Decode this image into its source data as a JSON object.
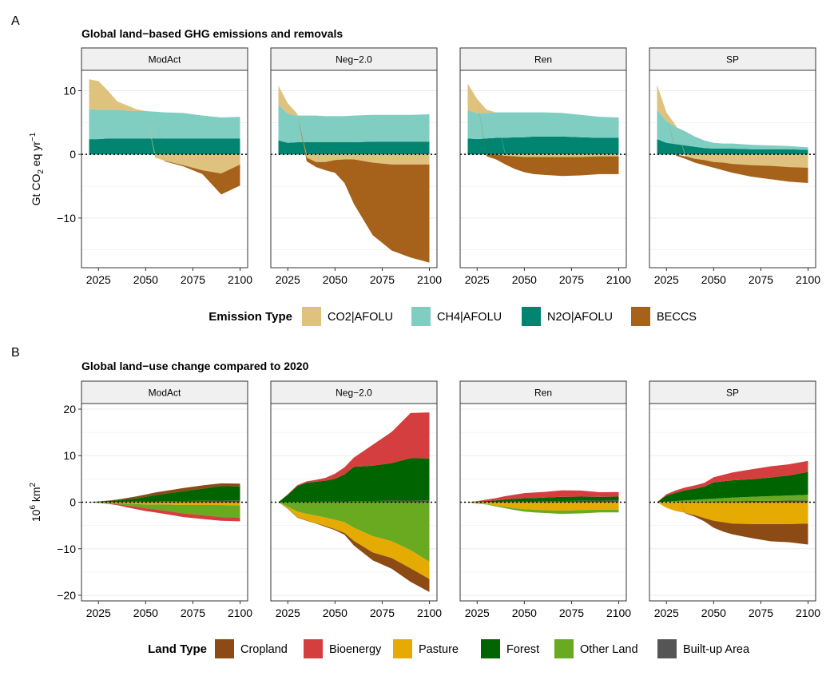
{
  "colors": {
    "CO2|AFOLU": "#dfc27d",
    "CH4|AFOLU": "#80cdc1",
    "N2O|AFOLU": "#018571",
    "BECCS": "#a6611a",
    "Cropland": "#8c4a14",
    "Bioenergy": "#d53e3e",
    "Pasture": "#e6ab02",
    "Forest": "#006400",
    "Other Land": "#6aaa20",
    "Built-up Area": "#555555",
    "strip": "#f0f0f0",
    "grid": "#ebebeb"
  },
  "chart_data": [
    {
      "type": "area",
      "panel_tag": "A",
      "title": "Global land−based GHG emissions and removals",
      "ylabel": "Gt CO2 eq yr−1",
      "ylim": [
        -17.8,
        13.2
      ],
      "yticks": [
        10,
        0,
        -10
      ],
      "xlim": [
        2016,
        2104
      ],
      "xticks": [
        2025,
        2050,
        2075,
        2100
      ],
      "facets": [
        "ModAct",
        "Neg−2.0",
        "Ren",
        "SP"
      ],
      "legend": {
        "title": "Emission Type",
        "placement": "bottom",
        "items": [
          "CO2|AFOLU",
          "CH4|AFOLU",
          "N2O|AFOLU",
          "BECCS"
        ]
      },
      "x": [
        2020,
        2025,
        2030,
        2035,
        2040,
        2045,
        2050,
        2055,
        2060,
        2070,
        2080,
        2090,
        2100
      ],
      "panels": [
        {
          "facet": "ModAct",
          "series": [
            {
              "name": "N2O|AFOLU",
              "values": [
                2.4,
                2.4,
                2.5,
                2.5,
                2.5,
                2.5,
                2.5,
                2.5,
                2.5,
                2.5,
                2.5,
                2.5,
                2.5
              ]
            },
            {
              "name": "CH4|AFOLU",
              "values": [
                4.7,
                4.6,
                4.5,
                4.5,
                4.4,
                4.3,
                4.3,
                4.2,
                4.1,
                4.0,
                3.6,
                3.3,
                3.4
              ]
            },
            {
              "name": "CO2|AFOLU",
              "values": [
                4.7,
                4.5,
                3.0,
                1.3,
                0.8,
                0.3,
                0.0,
                -0.5,
                -1.0,
                -1.7,
                -2.5,
                -3.0,
                -1.6
              ]
            },
            {
              "name": "BECCS",
              "values": [
                0,
                0,
                0,
                0,
                0,
                0,
                0,
                0,
                -0.1,
                -0.2,
                -0.6,
                -3.3,
                -3.3
              ]
            }
          ]
        },
        {
          "facet": "Neg−2.0",
          "series": [
            {
              "name": "N2O|AFOLU",
              "values": [
                2.2,
                1.8,
                1.9,
                1.9,
                1.9,
                1.9,
                1.9,
                1.9,
                1.9,
                2.0,
                2.0,
                2.0,
                2.0
              ]
            },
            {
              "name": "CH4|AFOLU",
              "values": [
                5.6,
                4.6,
                4.2,
                4.2,
                4.2,
                4.1,
                4.1,
                4.1,
                4.2,
                4.2,
                4.2,
                4.2,
                4.3
              ]
            },
            {
              "name": "CO2|AFOLU",
              "values": [
                3.0,
                1.6,
                0.3,
                -0.5,
                -1.2,
                -1.2,
                -0.9,
                -0.8,
                -0.8,
                -1.3,
                -1.6,
                -1.6,
                -1.6
              ]
            },
            {
              "name": "BECCS",
              "values": [
                0,
                0,
                0,
                -0.6,
                -0.8,
                -1.3,
                -2.0,
                -3.7,
                -7.0,
                -11.4,
                -13.5,
                -14.6,
                -15.4
              ]
            }
          ]
        },
        {
          "facet": "Ren",
          "series": [
            {
              "name": "N2O|AFOLU",
              "values": [
                2.5,
                2.4,
                2.5,
                2.6,
                2.6,
                2.7,
                2.7,
                2.8,
                2.8,
                2.8,
                2.7,
                2.6,
                2.6
              ]
            },
            {
              "name": "CH4|AFOLU",
              "values": [
                4.4,
                4.1,
                4.0,
                4.0,
                4.0,
                3.9,
                3.9,
                3.8,
                3.8,
                3.7,
                3.5,
                3.3,
                3.2
              ]
            },
            {
              "name": "CO2|AFOLU",
              "values": [
                4.2,
                2.2,
                0.5,
                0.0,
                -0.2,
                -0.3,
                -0.4,
                -0.4,
                -0.4,
                -0.4,
                -0.4,
                -0.3,
                -0.3
              ]
            },
            {
              "name": "BECCS",
              "values": [
                0,
                0,
                -0.3,
                -0.8,
                -1.4,
                -2.0,
                -2.4,
                -2.7,
                -2.8,
                -3.0,
                -2.9,
                -2.8,
                -2.8
              ]
            }
          ]
        },
        {
          "facet": "SP",
          "series": [
            {
              "name": "N2O|AFOLU",
              "values": [
                2.4,
                1.8,
                1.6,
                1.4,
                1.2,
                1.0,
                0.9,
                0.9,
                0.9,
                0.8,
                0.8,
                0.8,
                0.7
              ]
            },
            {
              "name": "CH4|AFOLU",
              "values": [
                4.6,
                3.4,
                2.7,
                2.2,
                1.6,
                1.2,
                0.9,
                0.8,
                0.8,
                0.7,
                0.6,
                0.5,
                0.4
              ]
            },
            {
              "name": "CO2|AFOLU",
              "values": [
                3.9,
                1.4,
                0.2,
                -0.3,
                -0.7,
                -0.9,
                -1.2,
                -1.3,
                -1.5,
                -1.7,
                -1.8,
                -2.0,
                -2.1
              ]
            },
            {
              "name": "BECCS",
              "values": [
                0,
                0,
                -0.2,
                -0.4,
                -0.6,
                -0.8,
                -0.9,
                -1.2,
                -1.4,
                -1.8,
                -2.1,
                -2.3,
                -2.4
              ]
            }
          ]
        }
      ]
    },
    {
      "type": "area",
      "panel_tag": "B",
      "title": "Global land−use change compared to 2020",
      "ylabel": "10^6 km^2",
      "ylim": [
        -21.2,
        21.2
      ],
      "yticks": [
        20,
        10,
        0,
        -10,
        -20
      ],
      "xlim": [
        2016,
        2104
      ],
      "xticks": [
        2025,
        2050,
        2075,
        2100
      ],
      "facets": [
        "ModAct",
        "Neg−2.0",
        "Ren",
        "SP"
      ],
      "legend": {
        "title": "Land Type",
        "placement": "bottom",
        "items": [
          "Cropland",
          "Bioenergy",
          "Pasture",
          "Forest",
          "Other Land",
          "Built-up Area"
        ]
      },
      "x": [
        2020,
        2025,
        2030,
        2035,
        2040,
        2045,
        2050,
        2055,
        2060,
        2070,
        2080,
        2090,
        2100
      ],
      "panels": [
        {
          "facet": "ModAct",
          "series": [
            {
              "name": "Built-up Area",
              "values": [
                0,
                0.02,
                0.05,
                0.08,
                0.1,
                0.13,
                0.15,
                0.18,
                0.2,
                0.25,
                0.3,
                0.35,
                0.4
              ]
            },
            {
              "name": "Forest",
              "values": [
                0,
                0.1,
                0.2,
                0.3,
                0.5,
                0.7,
                1.0,
                1.3,
                1.6,
                2.1,
                2.6,
                3.1,
                3.0
              ]
            },
            {
              "name": "Cropland",
              "values": [
                0,
                0.05,
                0.1,
                0.2,
                0.3,
                0.4,
                0.5,
                0.6,
                0.6,
                0.7,
                0.7,
                0.6,
                0.6
              ]
            },
            {
              "name": "Pasture",
              "values": [
                0,
                -0.05,
                -0.1,
                -0.2,
                -0.3,
                -0.4,
                -0.5,
                -0.5,
                -0.5,
                -0.6,
                -0.6,
                -0.6,
                -0.7
              ]
            },
            {
              "name": "Other Land",
              "values": [
                0,
                -0.05,
                -0.15,
                -0.25,
                -0.4,
                -0.6,
                -0.8,
                -1.0,
                -1.3,
                -1.8,
                -2.2,
                -2.6,
                -2.6
              ]
            },
            {
              "name": "Bioenergy",
              "values": [
                0,
                -0.05,
                -0.1,
                -0.2,
                -0.4,
                -0.5,
                -0.6,
                -0.7,
                -0.7,
                -0.8,
                -0.8,
                -0.8,
                -0.8
              ]
            }
          ]
        },
        {
          "facet": "Neg−2.0",
          "series": [
            {
              "name": "Built-up Area",
              "values": [
                0,
                0.02,
                0.05,
                0.08,
                0.1,
                0.13,
                0.15,
                0.18,
                0.2,
                0.25,
                0.3,
                0.35,
                0.4
              ]
            },
            {
              "name": "Forest",
              "values": [
                0,
                1.6,
                3.4,
                4.1,
                4.3,
                4.5,
                4.9,
                5.8,
                7.4,
                7.6,
                8.1,
                9.1,
                9.0
              ]
            },
            {
              "name": "Bioenergy",
              "values": [
                0,
                0.1,
                0.2,
                0.3,
                0.4,
                0.6,
                1.1,
                1.5,
                2.0,
                4.5,
                6.7,
                9.7,
                9.9
              ]
            },
            {
              "name": "Other Land",
              "values": [
                0,
                -1.0,
                -2.0,
                -2.5,
                -2.9,
                -3.3,
                -3.8,
                -4.3,
                -5.5,
                -7.3,
                -8.4,
                -10.3,
                -12.8
              ]
            },
            {
              "name": "Pasture",
              "values": [
                0,
                -0.3,
                -1.2,
                -1.4,
                -1.6,
                -1.8,
                -2.0,
                -2.3,
                -2.8,
                -3.5,
                -3.6,
                -3.9,
                -3.7
              ]
            },
            {
              "name": "Cropland",
              "values": [
                0,
                -0.1,
                -0.1,
                -0.1,
                -0.1,
                -0.2,
                -0.2,
                -0.4,
                -1.0,
                -1.7,
                -2.3,
                -2.9,
                -2.8
              ]
            }
          ]
        },
        {
          "facet": "Ren",
          "series": [
            {
              "name": "Built-up Area",
              "values": [
                0,
                0.02,
                0.05,
                0.08,
                0.1,
                0.13,
                0.15,
                0.18,
                0.2,
                0.25,
                0.3,
                0.35,
                0.4
              ]
            },
            {
              "name": "Forest",
              "values": [
                0,
                0.1,
                0.2,
                0.3,
                0.5,
                0.6,
                0.7,
                0.7,
                0.8,
                0.9,
                0.9,
                0.8,
                0.8
              ]
            },
            {
              "name": "Bioenergy",
              "values": [
                0,
                0.1,
                0.3,
                0.5,
                0.7,
                0.9,
                1.1,
                1.2,
                1.2,
                1.4,
                1.3,
                1.0,
                1.0
              ]
            },
            {
              "name": "Pasture",
              "values": [
                0,
                -0.2,
                -0.4,
                -0.7,
                -1.0,
                -1.3,
                -1.5,
                -1.6,
                -1.7,
                -1.8,
                -1.7,
                -1.6,
                -1.6
              ]
            },
            {
              "name": "Other Land",
              "values": [
                0,
                -0.1,
                -0.1,
                -0.2,
                -0.3,
                -0.4,
                -0.5,
                -0.6,
                -0.6,
                -0.7,
                -0.7,
                -0.6,
                -0.6
              ]
            },
            {
              "name": "Cropland",
              "values": [
                0,
                0,
                0,
                0,
                0,
                0,
                0,
                0,
                0,
                0,
                0,
                0,
                0
              ]
            }
          ]
        },
        {
          "facet": "SP",
          "series": [
            {
              "name": "Built-up Area",
              "values": [
                0,
                0.02,
                0.05,
                0.08,
                0.1,
                0.13,
                0.15,
                0.18,
                0.2,
                0.25,
                0.3,
                0.35,
                0.4
              ]
            },
            {
              "name": "Other Land",
              "values": [
                0,
                0.1,
                0.2,
                0.3,
                0.4,
                0.5,
                0.6,
                0.7,
                0.8,
                0.9,
                1.0,
                1.1,
                1.2
              ]
            },
            {
              "name": "Forest",
              "values": [
                0,
                1.3,
                1.8,
                2.2,
                2.4,
                2.7,
                3.5,
                3.6,
                3.7,
                3.8,
                4.0,
                4.3,
                4.9
              ]
            },
            {
              "name": "Bioenergy",
              "values": [
                0,
                0.3,
                0.5,
                0.6,
                0.7,
                0.8,
                1.1,
                1.4,
                1.7,
                2.1,
                2.4,
                2.4,
                2.4
              ]
            },
            {
              "name": "Pasture",
              "values": [
                0,
                -1.2,
                -1.9,
                -2.3,
                -2.8,
                -3.4,
                -4.0,
                -4.3,
                -4.6,
                -4.7,
                -4.7,
                -4.7,
                -4.6
              ]
            },
            {
              "name": "Cropland",
              "values": [
                0,
                0,
                0,
                -0.1,
                -0.3,
                -0.7,
                -1.5,
                -2.0,
                -2.3,
                -3.0,
                -3.7,
                -3.9,
                -4.5
              ]
            }
          ]
        }
      ]
    }
  ]
}
